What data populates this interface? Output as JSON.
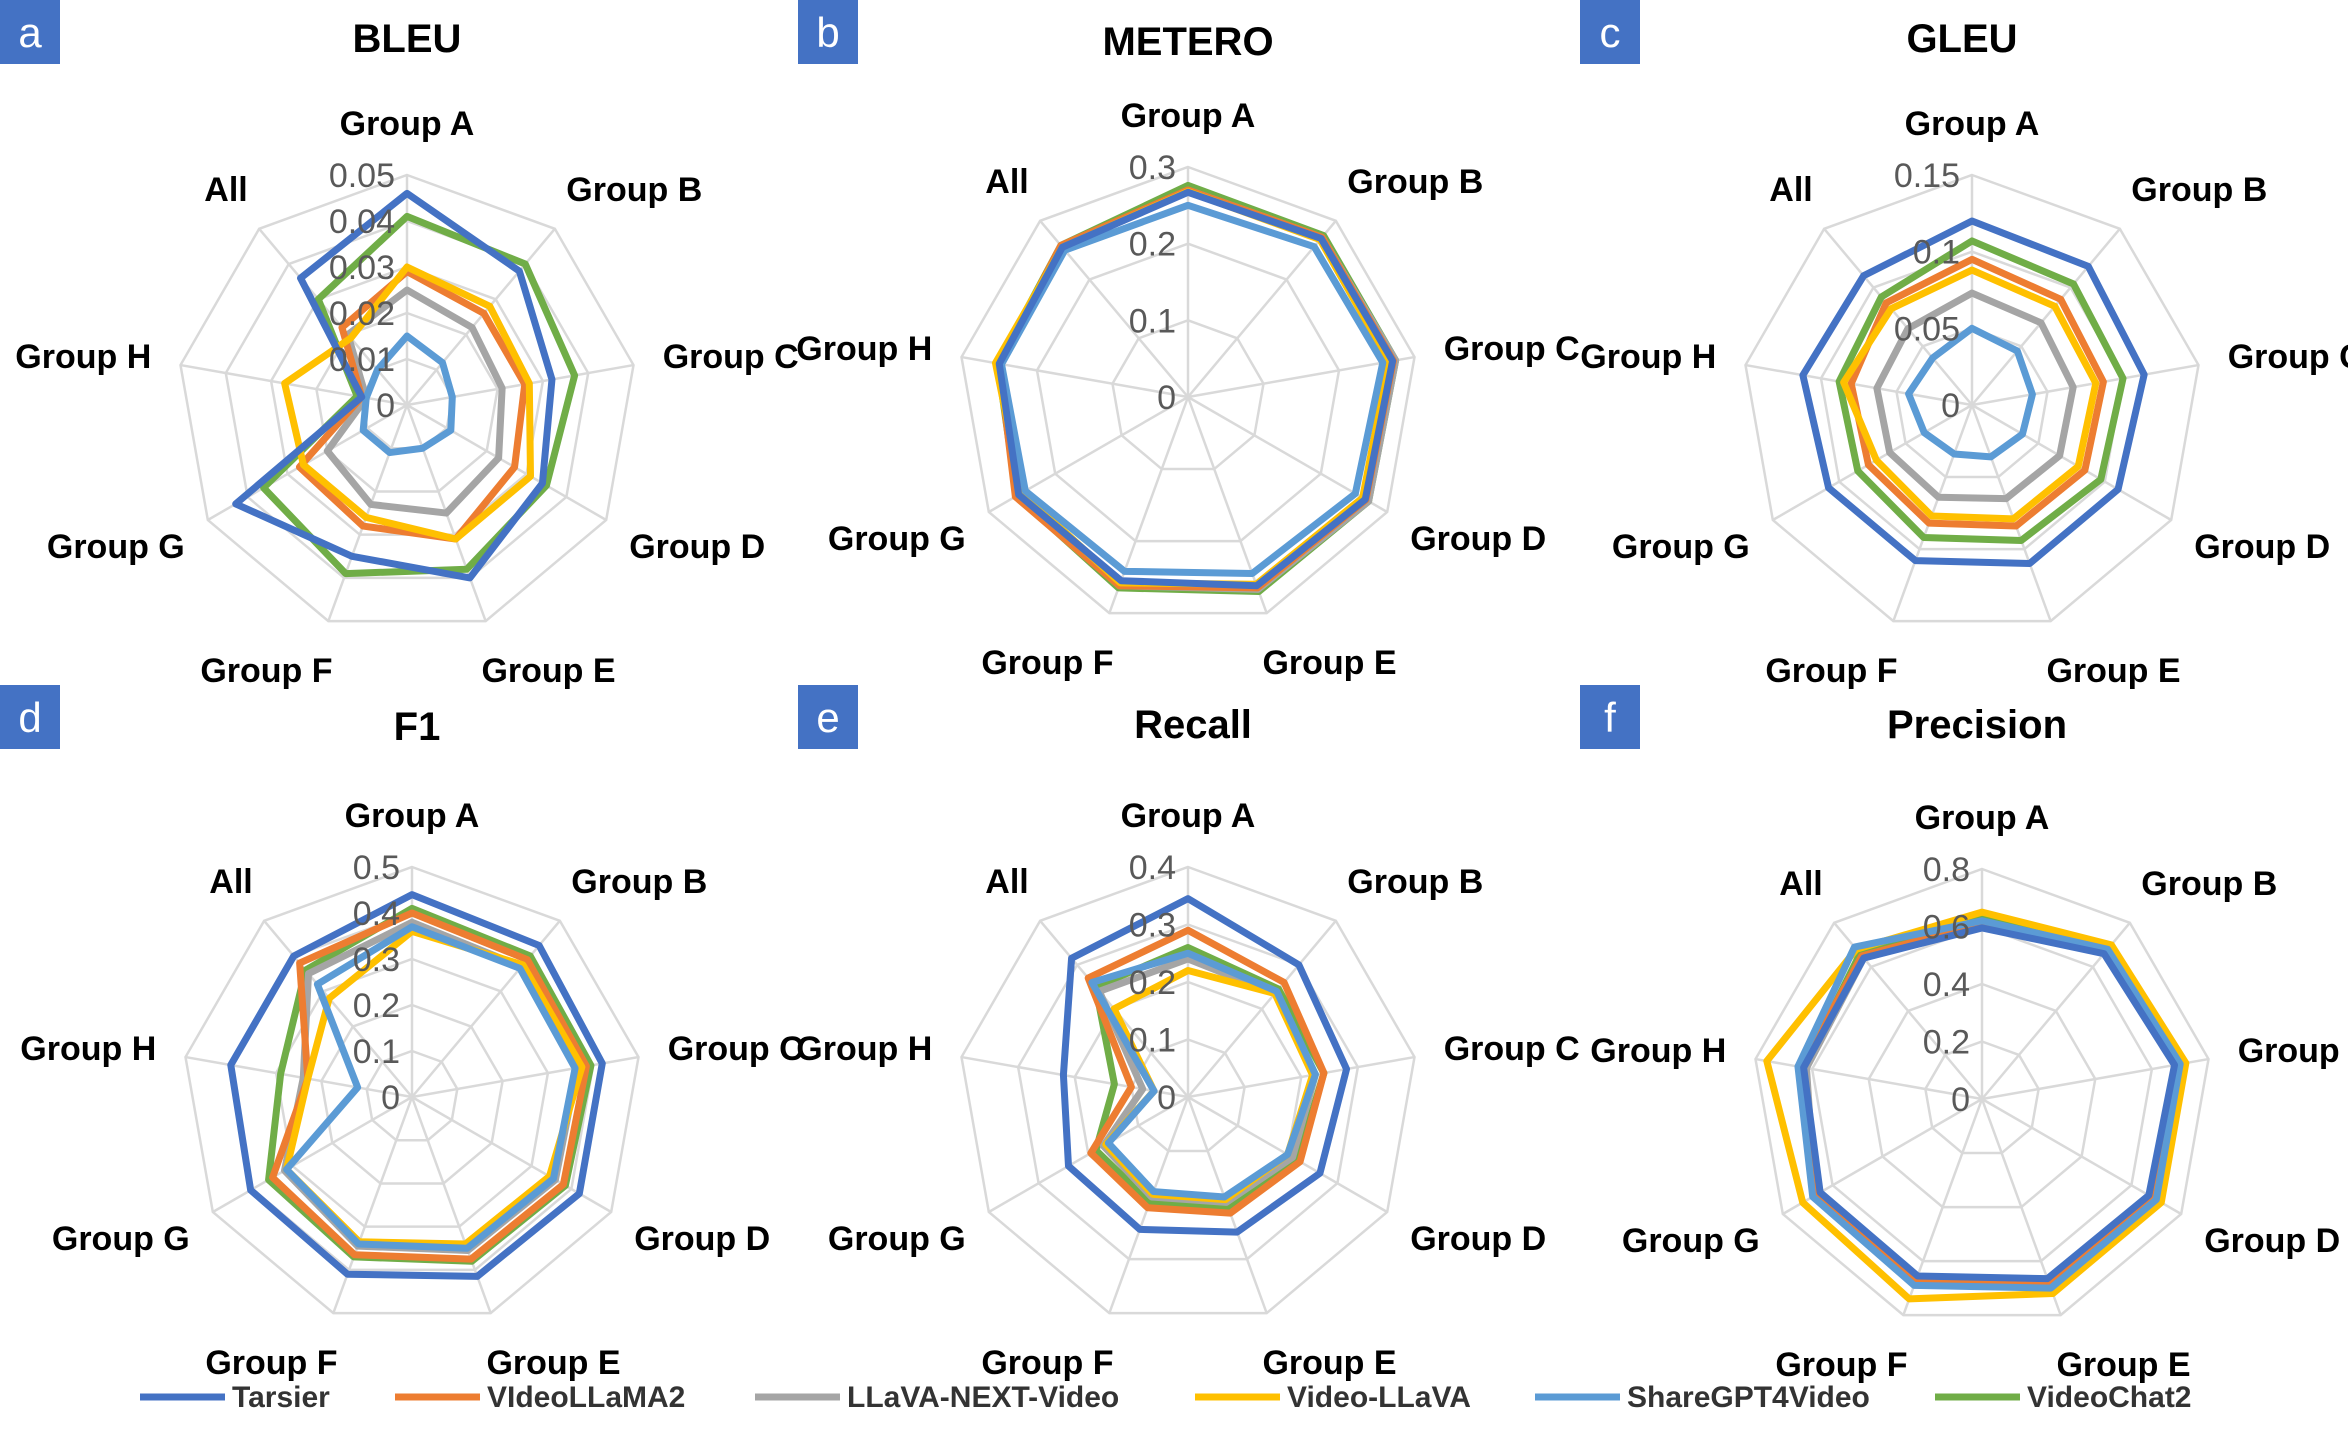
{
  "colors": {
    "badge": "#4472C4",
    "Tarsier": "#4472C4",
    "VIdeoLLaMA2": "#ED7D31",
    "LLaVA-NEXT-Video": "#A5A5A5",
    "Video-LLaVA": "#FFC000",
    "ShareGPT4Video": "#5B9BD5",
    "VideoChat2": "#70AD47"
  },
  "legend": [
    "Tarsier",
    "VIdeoLLaMA2",
    "LLaVA-NEXT-Video",
    "Video-LLaVA",
    "ShareGPT4Video",
    "VideoChat2"
  ],
  "chart_data": [
    {
      "type": "radar",
      "letter": "a",
      "title": "BLEU",
      "axes": [
        "Group A",
        "Group B",
        "Group C",
        "Group D",
        "Group E",
        "Group F",
        "Group G",
        "Group H",
        "All"
      ],
      "ticks": [
        "0",
        "0.01",
        "0.02",
        "0.03",
        "0.04",
        "0.05"
      ],
      "range": [
        0,
        0.05
      ],
      "grid": true,
      "series": [
        {
          "name": "Tarsier",
          "values": [
            0.046,
            0.038,
            0.032,
            0.034,
            0.04,
            0.035,
            0.043,
            0.01,
            0.036
          ]
        },
        {
          "name": "VIdeoLLaMA2",
          "values": [
            0.029,
            0.026,
            0.026,
            0.027,
            0.031,
            0.028,
            0.027,
            0.01,
            0.022
          ]
        },
        {
          "name": "LLaVA-NEXT-Video",
          "values": [
            0.025,
            0.022,
            0.021,
            0.023,
            0.025,
            0.023,
            0.02,
            0.009,
            0.02
          ]
        },
        {
          "name": "Video-LLaVA",
          "values": [
            0.03,
            0.028,
            0.027,
            0.031,
            0.031,
            0.026,
            0.026,
            0.027,
            0.019
          ]
        },
        {
          "name": "ShareGPT4Video",
          "values": [
            0.015,
            0.012,
            0.01,
            0.011,
            0.01,
            0.011,
            0.011,
            0.009,
            0.01
          ]
        },
        {
          "name": "VideoChat2",
          "values": [
            0.041,
            0.04,
            0.037,
            0.035,
            0.038,
            0.039,
            0.036,
            0.011,
            0.03
          ]
        }
      ]
    },
    {
      "type": "radar",
      "letter": "b",
      "title": "METERO",
      "axes": [
        "Group A",
        "Group B",
        "Group C",
        "Group D",
        "Group E",
        "Group F",
        "Group G",
        "Group H",
        "All"
      ],
      "ticks": [
        "0",
        "0.1",
        "0.2",
        "0.3"
      ],
      "range": [
        0,
        0.3
      ],
      "grid": true,
      "series": [
        {
          "name": "Tarsier",
          "values": [
            0.267,
            0.27,
            0.271,
            0.267,
            0.262,
            0.255,
            0.255,
            0.25,
            0.255
          ]
        },
        {
          "name": "VIdeoLLaMA2",
          "values": [
            0.27,
            0.272,
            0.272,
            0.268,
            0.265,
            0.262,
            0.26,
            0.25,
            0.258
          ]
        },
        {
          "name": "LLaVA-NEXT-Video",
          "values": [
            0.27,
            0.272,
            0.275,
            0.272,
            0.267,
            0.262,
            0.255,
            0.25,
            0.255
          ]
        },
        {
          "name": "Video-LLaVA",
          "values": [
            0.268,
            0.268,
            0.266,
            0.263,
            0.26,
            0.258,
            0.25,
            0.255,
            0.255
          ]
        },
        {
          "name": "ShareGPT4Video",
          "values": [
            0.25,
            0.256,
            0.258,
            0.252,
            0.245,
            0.242,
            0.245,
            0.247,
            0.25
          ]
        },
        {
          "name": "VideoChat2",
          "values": [
            0.276,
            0.275,
            0.275,
            0.272,
            0.27,
            0.265,
            0.258,
            0.252,
            0.258
          ]
        }
      ]
    },
    {
      "type": "radar",
      "letter": "c",
      "title": "GLEU",
      "axes": [
        "Group A",
        "Group B",
        "Group C",
        "Group D",
        "Group E",
        "Group F",
        "Group G",
        "Group H",
        "All"
      ],
      "ticks": [
        "0",
        "0.05",
        "0.1",
        "0.15"
      ],
      "range": [
        0,
        0.15
      ],
      "grid": true,
      "series": [
        {
          "name": "Tarsier",
          "values": [
            0.12,
            0.118,
            0.114,
            0.11,
            0.11,
            0.108,
            0.108,
            0.112,
            0.11
          ]
        },
        {
          "name": "VIdeoLLaMA2",
          "values": [
            0.095,
            0.09,
            0.087,
            0.085,
            0.084,
            0.082,
            0.078,
            0.08,
            0.087
          ]
        },
        {
          "name": "LLaVA-NEXT-Video",
          "values": [
            0.073,
            0.07,
            0.067,
            0.066,
            0.065,
            0.064,
            0.062,
            0.063,
            0.065
          ]
        },
        {
          "name": "Video-LLaVA",
          "values": [
            0.088,
            0.084,
            0.082,
            0.08,
            0.079,
            0.077,
            0.072,
            0.085,
            0.082
          ]
        },
        {
          "name": "ShareGPT4Video",
          "values": [
            0.05,
            0.046,
            0.04,
            0.038,
            0.036,
            0.034,
            0.036,
            0.042,
            0.04
          ]
        },
        {
          "name": "VideoChat2",
          "values": [
            0.107,
            0.103,
            0.1,
            0.097,
            0.094,
            0.092,
            0.086,
            0.088,
            0.092
          ]
        }
      ]
    },
    {
      "type": "radar",
      "letter": "d",
      "title": "F1",
      "axes": [
        "Group A",
        "Group B",
        "Group C",
        "Group D",
        "Group E",
        "Group F",
        "Group G",
        "Group H",
        "All"
      ],
      "ticks": [
        "0",
        "0.1",
        "0.2",
        "0.3",
        "0.4",
        "0.5"
      ],
      "range": [
        0,
        0.5
      ],
      "grid": true,
      "series": [
        {
          "name": "Tarsier",
          "values": [
            0.44,
            0.43,
            0.42,
            0.42,
            0.415,
            0.41,
            0.405,
            0.4,
            0.4
          ]
        },
        {
          "name": "VIdeoLLaMA2",
          "values": [
            0.4,
            0.39,
            0.385,
            0.38,
            0.375,
            0.365,
            0.35,
            0.23,
            0.38
          ]
        },
        {
          "name": "LLaVA-NEXT-Video",
          "values": [
            0.38,
            0.37,
            0.365,
            0.36,
            0.355,
            0.345,
            0.32,
            0.24,
            0.35
          ]
        },
        {
          "name": "Video-LLaVA",
          "values": [
            0.36,
            0.375,
            0.375,
            0.345,
            0.34,
            0.335,
            0.315,
            0.23,
            0.28
          ]
        },
        {
          "name": "ShareGPT4Video",
          "values": [
            0.37,
            0.365,
            0.36,
            0.355,
            0.35,
            0.34,
            0.315,
            0.12,
            0.32
          ]
        },
        {
          "name": "VideoChat2",
          "values": [
            0.41,
            0.4,
            0.395,
            0.385,
            0.38,
            0.37,
            0.36,
            0.29,
            0.36
          ]
        }
      ]
    },
    {
      "type": "radar",
      "letter": "e",
      "title": "Recall",
      "axes": [
        "Group A",
        "Group B",
        "Group C",
        "Group D",
        "Group E",
        "Group F",
        "Group G",
        "Group H",
        "All"
      ],
      "ticks": [
        "0",
        "0.1",
        "0.2",
        "0.3",
        "0.4"
      ],
      "range": [
        0,
        0.4
      ],
      "grid": true,
      "series": [
        {
          "name": "Tarsier",
          "values": [
            0.345,
            0.3,
            0.28,
            0.265,
            0.25,
            0.245,
            0.24,
            0.22,
            0.315
          ]
        },
        {
          "name": "VIdeoLLaMA2",
          "values": [
            0.29,
            0.26,
            0.24,
            0.225,
            0.215,
            0.205,
            0.195,
            0.1,
            0.27
          ]
        },
        {
          "name": "LLaVA-NEXT-Video",
          "values": [
            0.24,
            0.235,
            0.225,
            0.21,
            0.195,
            0.185,
            0.17,
            0.08,
            0.24
          ]
        },
        {
          "name": "Video-LLaVA",
          "values": [
            0.22,
            0.235,
            0.22,
            0.2,
            0.19,
            0.18,
            0.165,
            0.06,
            0.2
          ]
        },
        {
          "name": "ShareGPT4Video",
          "values": [
            0.25,
            0.24,
            0.225,
            0.2,
            0.185,
            0.175,
            0.16,
            0.06,
            0.26
          ]
        },
        {
          "name": "VideoChat2",
          "values": [
            0.26,
            0.245,
            0.24,
            0.22,
            0.205,
            0.195,
            0.185,
            0.13,
            0.25
          ]
        }
      ]
    },
    {
      "type": "radar",
      "letter": "f",
      "title": "Precision",
      "axes": [
        "Group A",
        "Group B",
        "Group C",
        "Group D",
        "Group E",
        "Group F",
        "Group G",
        "Group H",
        "All"
      ],
      "ticks": [
        "0",
        "0.2",
        "0.4",
        "0.6",
        "0.8"
      ],
      "range": [
        0,
        0.8
      ],
      "grid": true,
      "series": [
        {
          "name": "Tarsier",
          "values": [
            0.595,
            0.66,
            0.68,
            0.67,
            0.665,
            0.655,
            0.65,
            0.63,
            0.64
          ]
        },
        {
          "name": "VIdeoLLaMA2",
          "values": [
            0.61,
            0.67,
            0.695,
            0.685,
            0.68,
            0.67,
            0.665,
            0.64,
            0.65
          ]
        },
        {
          "name": "LLaVA-NEXT-Video",
          "values": [
            0.615,
            0.67,
            0.69,
            0.69,
            0.69,
            0.68,
            0.67,
            0.62,
            0.64
          ]
        },
        {
          "name": "Video-LLaVA",
          "values": [
            0.65,
            0.7,
            0.72,
            0.72,
            0.72,
            0.74,
            0.72,
            0.76,
            0.68
          ]
        },
        {
          "name": "ShareGPT4Video",
          "values": [
            0.62,
            0.68,
            0.7,
            0.7,
            0.7,
            0.69,
            0.68,
            0.65,
            0.69
          ]
        },
        {
          "name": "VideoChat2",
          "values": [
            0.63,
            0.69,
            0.705,
            0.69,
            0.69,
            0.68,
            0.67,
            0.63,
            0.66
          ]
        }
      ]
    }
  ]
}
